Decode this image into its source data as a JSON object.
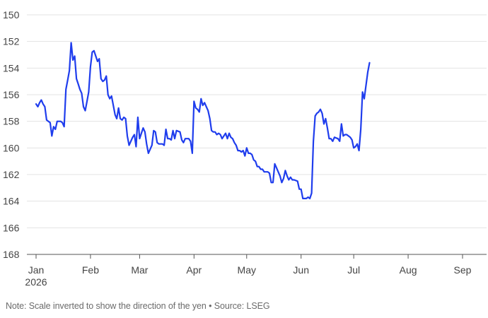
{
  "note": "Note: Scale inverted to show the direction of the yen • Source: LSEG",
  "chart_data": {
    "type": "line",
    "title": "",
    "xlabel": "",
    "ylabel": "",
    "y_inverted": true,
    "ylim": [
      150,
      168
    ],
    "y_ticks": [
      150,
      152,
      154,
      156,
      158,
      160,
      162,
      164,
      166,
      168
    ],
    "grid": true,
    "line_color": "#1f3ded",
    "x_ticks": [
      {
        "label": "Jan",
        "sublabel": "2026",
        "day": 0
      },
      {
        "label": "Feb",
        "day": 31
      },
      {
        "label": "Mar",
        "day": 59
      },
      {
        "label": "Apr",
        "day": 90
      },
      {
        "label": "May",
        "day": 120
      },
      {
        "label": "Jun",
        "day": 151
      },
      {
        "label": "Jul",
        "day": 181
      },
      {
        "label": "Aug",
        "day": 212
      },
      {
        "label": "Sep",
        "day": 243
      }
    ],
    "series": [
      {
        "values": [
          [
            0,
            156.7
          ],
          [
            1,
            156.9
          ],
          [
            2,
            156.6
          ],
          [
            3,
            156.4
          ],
          [
            4,
            156.7
          ],
          [
            5,
            156.9
          ],
          [
            6,
            157.9
          ],
          [
            7,
            158.0
          ],
          [
            8,
            158.1
          ],
          [
            9,
            159.1
          ],
          [
            10,
            158.4
          ],
          [
            11,
            158.6
          ],
          [
            12,
            158.0
          ],
          [
            14,
            158.0
          ],
          [
            15,
            158.1
          ],
          [
            16,
            158.4
          ],
          [
            17,
            155.6
          ],
          [
            18,
            154.9
          ],
          [
            19,
            154.2
          ],
          [
            20,
            152.1
          ],
          [
            21,
            153.4
          ],
          [
            22,
            153.1
          ],
          [
            23,
            154.8
          ],
          [
            24,
            155.2
          ],
          [
            25,
            155.6
          ],
          [
            26,
            155.9
          ],
          [
            27,
            156.9
          ],
          [
            28,
            157.2
          ],
          [
            29,
            156.5
          ],
          [
            30,
            155.8
          ],
          [
            31,
            153.9
          ],
          [
            32,
            152.8
          ],
          [
            33,
            152.7
          ],
          [
            34,
            153.1
          ],
          [
            35,
            153.5
          ],
          [
            36,
            153.3
          ],
          [
            37,
            154.8
          ],
          [
            38,
            155.0
          ],
          [
            39,
            154.9
          ],
          [
            40,
            154.6
          ],
          [
            41,
            156.0
          ],
          [
            42,
            156.3
          ],
          [
            43,
            156.1
          ],
          [
            44,
            156.8
          ],
          [
            45,
            157.5
          ],
          [
            46,
            157.8
          ],
          [
            47,
            157.0
          ],
          [
            48,
            157.8
          ],
          [
            49,
            157.9
          ],
          [
            50,
            157.7
          ],
          [
            51,
            157.8
          ],
          [
            52,
            159.1
          ],
          [
            53,
            159.8
          ],
          [
            54,
            159.5
          ],
          [
            55,
            159.2
          ],
          [
            56,
            159.0
          ],
          [
            57,
            159.9
          ],
          [
            58,
            157.7
          ],
          [
            59,
            159.3
          ],
          [
            60,
            158.9
          ],
          [
            61,
            158.5
          ],
          [
            62,
            158.8
          ],
          [
            63,
            159.7
          ],
          [
            64,
            160.4
          ],
          [
            65,
            160.1
          ],
          [
            66,
            159.8
          ],
          [
            67,
            158.7
          ],
          [
            68,
            158.8
          ],
          [
            69,
            159.6
          ],
          [
            70,
            159.7
          ],
          [
            72,
            159.7
          ],
          [
            73,
            159.8
          ],
          [
            74,
            158.6
          ],
          [
            75,
            159.3
          ],
          [
            76,
            159.3
          ],
          [
            77,
            159.4
          ],
          [
            78,
            158.7
          ],
          [
            79,
            159.3
          ],
          [
            80,
            158.7
          ],
          [
            82,
            158.8
          ],
          [
            83,
            159.4
          ],
          [
            84,
            159.6
          ],
          [
            85,
            159.3
          ],
          [
            87,
            159.3
          ],
          [
            88,
            159.5
          ],
          [
            89,
            160.4
          ],
          [
            90,
            156.5
          ],
          [
            91,
            157.0
          ],
          [
            92,
            157.1
          ],
          [
            93,
            157.3
          ],
          [
            94,
            156.3
          ],
          [
            95,
            156.8
          ],
          [
            96,
            156.6
          ],
          [
            97,
            156.9
          ],
          [
            98,
            157.2
          ],
          [
            99,
            157.8
          ],
          [
            100,
            158.7
          ],
          [
            101,
            158.8
          ],
          [
            102,
            158.8
          ],
          [
            103,
            159.0
          ],
          [
            104,
            158.9
          ],
          [
            105,
            159.0
          ],
          [
            106,
            159.3
          ],
          [
            107,
            159.1
          ],
          [
            108,
            158.9
          ],
          [
            109,
            159.3
          ],
          [
            110,
            158.9
          ],
          [
            111,
            159.2
          ],
          [
            112,
            159.3
          ],
          [
            113,
            159.6
          ],
          [
            114,
            159.8
          ],
          [
            115,
            160.2
          ],
          [
            116,
            160.2
          ],
          [
            117,
            160.3
          ],
          [
            118,
            160.2
          ],
          [
            119,
            160.6
          ],
          [
            120,
            160.0
          ],
          [
            121,
            160.4
          ],
          [
            122,
            160.4
          ],
          [
            123,
            160.5
          ],
          [
            124,
            160.9
          ],
          [
            125,
            161.0
          ],
          [
            126,
            161.4
          ],
          [
            127,
            161.4
          ],
          [
            128,
            161.6
          ],
          [
            129,
            161.6
          ],
          [
            130,
            161.8
          ],
          [
            132,
            161.8
          ],
          [
            133,
            161.9
          ],
          [
            134,
            162.6
          ],
          [
            135,
            162.6
          ],
          [
            136,
            161.2
          ],
          [
            137,
            161.5
          ],
          [
            138,
            161.8
          ],
          [
            139,
            162.1
          ],
          [
            140,
            162.6
          ],
          [
            141,
            162.3
          ],
          [
            142,
            161.7
          ],
          [
            143,
            162.1
          ],
          [
            144,
            162.4
          ],
          [
            145,
            162.2
          ],
          [
            146,
            162.4
          ],
          [
            147,
            162.4
          ],
          [
            149,
            162.5
          ],
          [
            150,
            163.1
          ],
          [
            151,
            163.1
          ],
          [
            152,
            163.8
          ],
          [
            154,
            163.8
          ],
          [
            155,
            163.7
          ],
          [
            156,
            163.8
          ],
          [
            157,
            163.4
          ],
          [
            158,
            159.5
          ],
          [
            159,
            157.6
          ],
          [
            160,
            157.4
          ],
          [
            161,
            157.3
          ],
          [
            162,
            157.1
          ],
          [
            163,
            157.4
          ],
          [
            164,
            158.2
          ],
          [
            165,
            157.8
          ],
          [
            166,
            158.5
          ],
          [
            167,
            159.3
          ],
          [
            168,
            159.3
          ],
          [
            169,
            159.5
          ],
          [
            170,
            159.2
          ],
          [
            172,
            159.3
          ],
          [
            173,
            159.5
          ],
          [
            174,
            158.2
          ],
          [
            175,
            159.1
          ],
          [
            176,
            159.0
          ],
          [
            177,
            159.0
          ],
          [
            178,
            159.1
          ],
          [
            179,
            159.2
          ],
          [
            180,
            159.4
          ],
          [
            181,
            160.0
          ],
          [
            182,
            159.9
          ],
          [
            183,
            159.7
          ],
          [
            184,
            160.2
          ],
          [
            185,
            158.6
          ],
          [
            186,
            155.8
          ],
          [
            187,
            156.3
          ],
          [
            188,
            155.3
          ],
          [
            189,
            154.3
          ],
          [
            190,
            153.6
          ]
        ]
      }
    ]
  }
}
